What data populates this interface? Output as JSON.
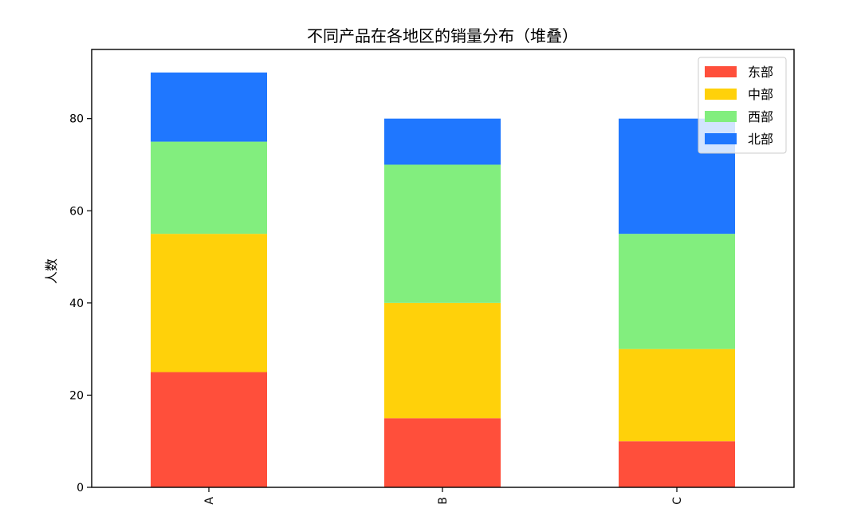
{
  "chart_data": {
    "type": "bar",
    "stacked": true,
    "title": "不同产品在各地区的销量分布（堆叠）",
    "xlabel": "",
    "ylabel": "人数",
    "categories": [
      "A",
      "B",
      "C"
    ],
    "series": [
      {
        "name": "东部",
        "color": "#ff4f3b",
        "values": [
          25,
          15,
          10
        ]
      },
      {
        "name": "中部",
        "color": "#ffd10a",
        "values": [
          30,
          25,
          20
        ]
      },
      {
        "name": "西部",
        "color": "#82ee7e",
        "values": [
          20,
          30,
          25
        ]
      },
      {
        "name": "北部",
        "color": "#1f77ff",
        "values": [
          15,
          10,
          25
        ]
      }
    ],
    "ylim": [
      0,
      95
    ],
    "yticks": [
      0,
      20,
      40,
      60,
      80
    ],
    "grid": false,
    "legend_position": "top-right"
  }
}
